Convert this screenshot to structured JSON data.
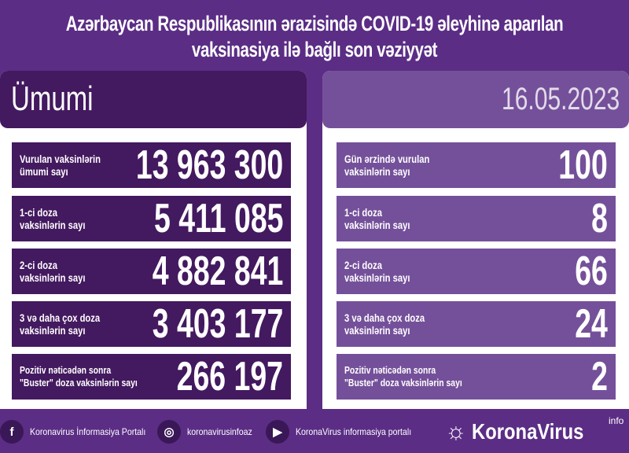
{
  "title_line1": "Azərbaycan Respublikasının ərazisində COVID-19 əleyhinə aparılan",
  "title_line2": "vaksinasiya ilə bağlı son vəziyyət",
  "left": {
    "header": "Ümumi",
    "rows": [
      {
        "label": "Vurulan vaksinlərin\nümumi sayı",
        "value": "13 963 300"
      },
      {
        "label": "1-ci doza\nvaksinlərin sayı",
        "value": "5 411 085"
      },
      {
        "label": "2-ci doza\nvaksinlərin sayı",
        "value": "4 882 841"
      },
      {
        "label": "3 və daha çox doza\nvaksinlərin sayı",
        "value": "3 403 177"
      },
      {
        "label": "Pozitiv nəticədən sonra\n\"Buster\" doza vaksinlərin sayı",
        "value": "266 197"
      }
    ]
  },
  "right": {
    "header": "16.05.2023",
    "rows": [
      {
        "label": "Gün ərzində vurulan\nvaksinlərin sayı",
        "value": "100"
      },
      {
        "label": "1-ci doza\nvaksinlərin sayı",
        "value": "8"
      },
      {
        "label": "2-ci doza\nvaksinlərin sayı",
        "value": "66"
      },
      {
        "label": "3 və daha çox doza\nvaksinlərin sayı",
        "value": "24"
      },
      {
        "label": "Pozitiv nəticədən sonra\n\"Buster\" doza vaksinlərin sayı",
        "value": "2"
      }
    ]
  },
  "footer": {
    "facebook": "Koronavirus İnformasiya Portalı",
    "instagram": "koronavirusinfoaz",
    "youtube": "KoronaVirus informasiya portalı"
  },
  "brand": {
    "name": "KoronaVirus",
    "suffix": "info"
  },
  "colors": {
    "background": "#5b2d85",
    "left_box": "#43195f",
    "right_box": "#74509a"
  }
}
